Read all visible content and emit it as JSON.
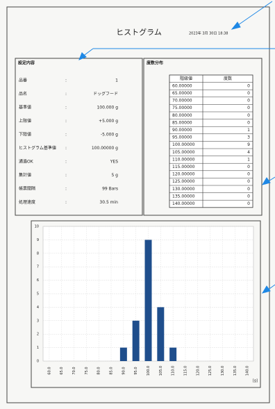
{
  "header": {
    "title": "ヒストグラム",
    "date": "2023年 3月 30日 18:38"
  },
  "settings": {
    "title": "設定内容",
    "separator": ":",
    "rows": [
      [
        "品番",
        "1"
      ],
      [
        "品名",
        "ドッグフード"
      ],
      [
        "基準値",
        "100.000 g"
      ],
      [
        "上限値",
        "+5.000 g"
      ],
      [
        "下限値",
        "-5.000 g"
      ],
      [
        "ヒストグラム基準値",
        "100.00000 g"
      ],
      [
        "通過OK",
        "YES"
      ],
      [
        "集計値",
        "5 g"
      ],
      [
        "帳票間隔",
        "99 Bars"
      ],
      [
        "処理速度",
        "30.5 min"
      ]
    ]
  },
  "frequency": {
    "title": "度数分布",
    "columns": [
      "階級値",
      "度数"
    ],
    "rows": [
      [
        "60.00000",
        "0"
      ],
      [
        "65.00000",
        "0"
      ],
      [
        "70.00000",
        "0"
      ],
      [
        "75.00000",
        "0"
      ],
      [
        "80.00000",
        "0"
      ],
      [
        "85.00000",
        "0"
      ],
      [
        "90.00000",
        "1"
      ],
      [
        "95.00000",
        "3"
      ],
      [
        "100.00000",
        "9"
      ],
      [
        "105.00000",
        "4"
      ],
      [
        "110.00000",
        "1"
      ],
      [
        "115.00000",
        "0"
      ],
      [
        "120.00000",
        "0"
      ],
      [
        "125.00000",
        "0"
      ],
      [
        "130.00000",
        "0"
      ],
      [
        "135.00000",
        "0"
      ],
      [
        "140.00000",
        "0"
      ]
    ]
  },
  "chart_data": {
    "type": "bar",
    "x_unit": "[g]",
    "categories": [
      "60.0",
      "65.0",
      "70.0",
      "75.0",
      "80.0",
      "85.0",
      "90.0",
      "95.0",
      "100.0",
      "105.0",
      "110.0",
      "115.0",
      "120.0",
      "125.0",
      "130.0",
      "135.0",
      "140.0"
    ],
    "values": [
      0,
      0,
      0,
      0,
      0,
      0,
      1,
      3,
      9,
      4,
      1,
      0,
      0,
      0,
      0,
      0,
      0
    ],
    "color": "#1f4e8c",
    "ylim": [
      0,
      10
    ],
    "yticks": [
      0,
      1,
      2,
      3,
      4,
      5,
      6,
      7,
      8,
      9,
      10
    ],
    "grid": true
  }
}
